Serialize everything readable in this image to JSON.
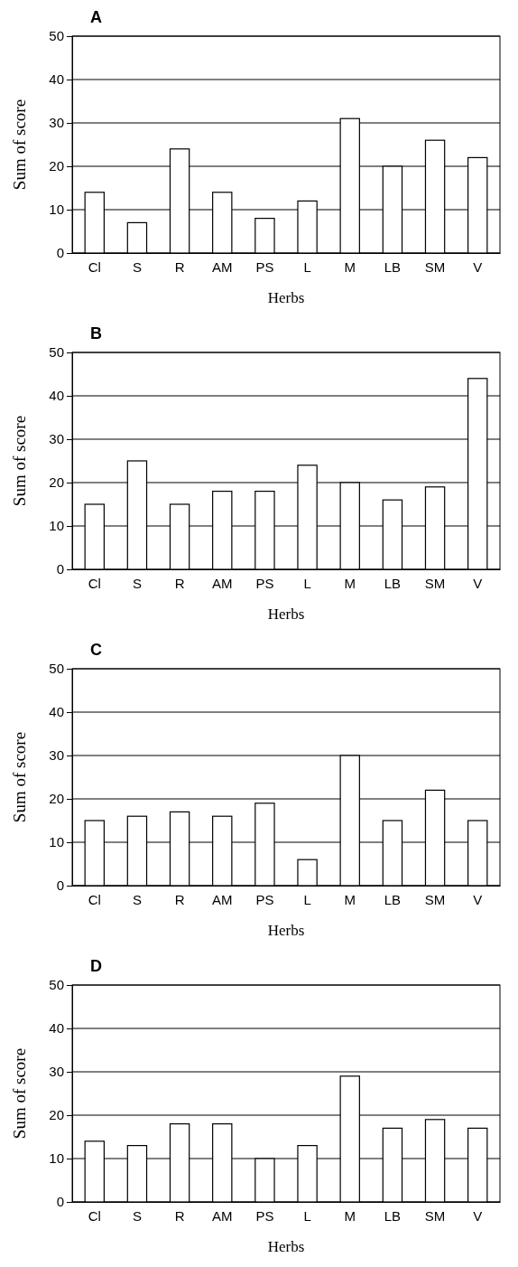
{
  "chart_data": [
    {
      "type": "bar",
      "title": "A",
      "xlabel": "Herbs",
      "ylabel": "Sum of score",
      "categories": [
        "Cl",
        "S",
        "R",
        "AM",
        "PS",
        "L",
        "M",
        "LB",
        "SM",
        "V"
      ],
      "values": [
        14,
        7,
        24,
        14,
        8,
        12,
        31,
        20,
        26,
        22
      ],
      "color": "#ffffff",
      "ylim": [
        0,
        50
      ],
      "yticks": [
        0,
        10,
        20,
        30,
        40,
        50
      ],
      "grid": "y"
    },
    {
      "type": "bar",
      "title": "B",
      "xlabel": "Herbs",
      "ylabel": "Sum of score",
      "categories": [
        "Cl",
        "S",
        "R",
        "AM",
        "PS",
        "L",
        "M",
        "LB",
        "SM",
        "V"
      ],
      "values": [
        15,
        25,
        15,
        18,
        18,
        24,
        20,
        16,
        19,
        44
      ],
      "color": "#ffffff",
      "ylim": [
        0,
        50
      ],
      "yticks": [
        0,
        10,
        20,
        30,
        40,
        50
      ],
      "grid": "y"
    },
    {
      "type": "bar",
      "title": "C",
      "xlabel": "Herbs",
      "ylabel": "Sum of score",
      "categories": [
        "Cl",
        "S",
        "R",
        "AM",
        "PS",
        "L",
        "M",
        "LB",
        "SM",
        "V"
      ],
      "values": [
        15,
        16,
        17,
        16,
        19,
        6,
        30,
        15,
        22,
        15
      ],
      "color": "#ffffff",
      "ylim": [
        0,
        50
      ],
      "yticks": [
        0,
        10,
        20,
        30,
        40,
        50
      ],
      "grid": "y"
    },
    {
      "type": "bar",
      "title": "D",
      "xlabel": "Herbs",
      "ylabel": "Sum of score",
      "categories": [
        "Cl",
        "S",
        "R",
        "AM",
        "PS",
        "L",
        "M",
        "LB",
        "SM",
        "V"
      ],
      "values": [
        14,
        13,
        18,
        18,
        10,
        13,
        29,
        17,
        19,
        17
      ],
      "color": "#ffffff",
      "ylim": [
        0,
        50
      ],
      "yticks": [
        0,
        10,
        20,
        30,
        40,
        50
      ],
      "grid": "y"
    }
  ]
}
